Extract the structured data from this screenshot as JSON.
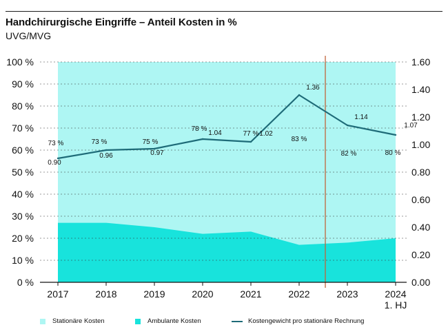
{
  "header": {
    "title": "Handchirurgische Eingriffe – Anteil Kosten in %",
    "subtitle": "UVG/MVG"
  },
  "chart_data": {
    "type": "area",
    "categories": [
      "2017",
      "2018",
      "2019",
      "2020",
      "2021",
      "2022",
      "2023",
      "2024"
    ],
    "category_sublabels": [
      "",
      "",
      "",
      "",
      "",
      "",
      "",
      "1. HJ"
    ],
    "series": [
      {
        "name": "Stationäre Kosten",
        "axis": "left",
        "values": [
          73,
          73,
          75,
          78,
          77,
          83,
          82,
          80
        ],
        "labels": [
          "73 %",
          "73 %",
          "75 %",
          "78 %",
          "77 %",
          "83 %",
          "82 %",
          "80 %"
        ]
      },
      {
        "name": "Ambulante Kosten",
        "axis": "left",
        "values": [
          27,
          27,
          25,
          22,
          23,
          17,
          18,
          20
        ]
      },
      {
        "name": "Kostengewicht pro stationäre Rechnung",
        "axis": "right",
        "type": "line",
        "values": [
          0.9,
          0.96,
          0.97,
          1.04,
          1.02,
          1.36,
          1.14,
          1.07
        ],
        "labels": [
          "0.90",
          "0.96",
          "0.97",
          "1.04",
          "1.02",
          "1.36",
          "1.14",
          "1.07"
        ]
      }
    ],
    "y_left": {
      "ylim": [
        0,
        100
      ],
      "ticks": [
        "0 %",
        "10 %",
        "20 %",
        "30 %",
        "40 %",
        "50 %",
        "60 %",
        "70 %",
        "80 %",
        "90 %",
        "100 %"
      ]
    },
    "y_right": {
      "ylim": [
        0,
        1.6
      ],
      "ticks": [
        "0.00",
        "0.20",
        "0.40",
        "0.60",
        "0.80",
        "1.00",
        "1.20",
        "1.40",
        "1.60"
      ]
    },
    "marker_line_between": [
      "2022",
      "2023"
    ],
    "colors": {
      "stationaer": "#aef6f3",
      "ambulant": "#18e3dc",
      "line": "#1e6b78",
      "marker": "#c0643b"
    }
  },
  "legend": {
    "items": [
      {
        "label": "Stationäre Kosten",
        "color": "#aef6f3"
      },
      {
        "label": "Ambulante Kosten",
        "color": "#18e3dc"
      },
      {
        "label": "Kostengewicht pro stationäre Rechnung",
        "color": "#1e6b78"
      }
    ]
  }
}
